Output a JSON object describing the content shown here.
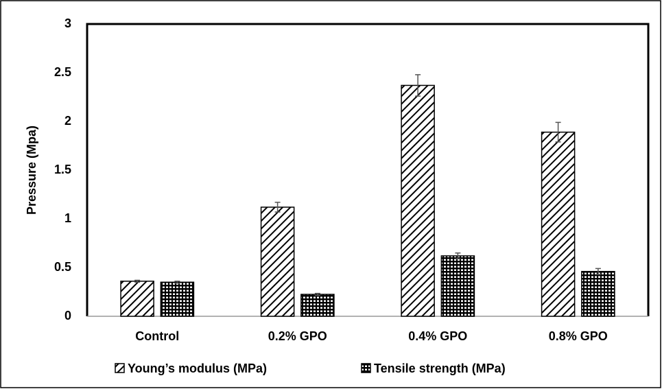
{
  "chart_data": {
    "type": "bar",
    "ylabel": "Pressure (Mpa)",
    "categories": [
      "Control",
      "0.2% GPO",
      "0.4% GPO",
      "0.8% GPO"
    ],
    "series": [
      {
        "name": "Young’s modulus (MPa)",
        "color": "#000000",
        "values": [
          0.36,
          1.12,
          2.37,
          1.89
        ],
        "errors": [
          0.01,
          0.05,
          0.11,
          0.1
        ]
      },
      {
        "name": "Tensile strength (MPa)",
        "color": "#000000",
        "values": [
          0.35,
          0.225,
          0.62,
          0.46
        ],
        "errors": [
          0.01,
          0.01,
          0.03,
          0.03
        ]
      }
    ],
    "ylim": [
      0,
      3
    ],
    "yticks": [
      0,
      0.5,
      1,
      1.5,
      2,
      2.5,
      3
    ],
    "grid": false,
    "legend": "bottom"
  }
}
